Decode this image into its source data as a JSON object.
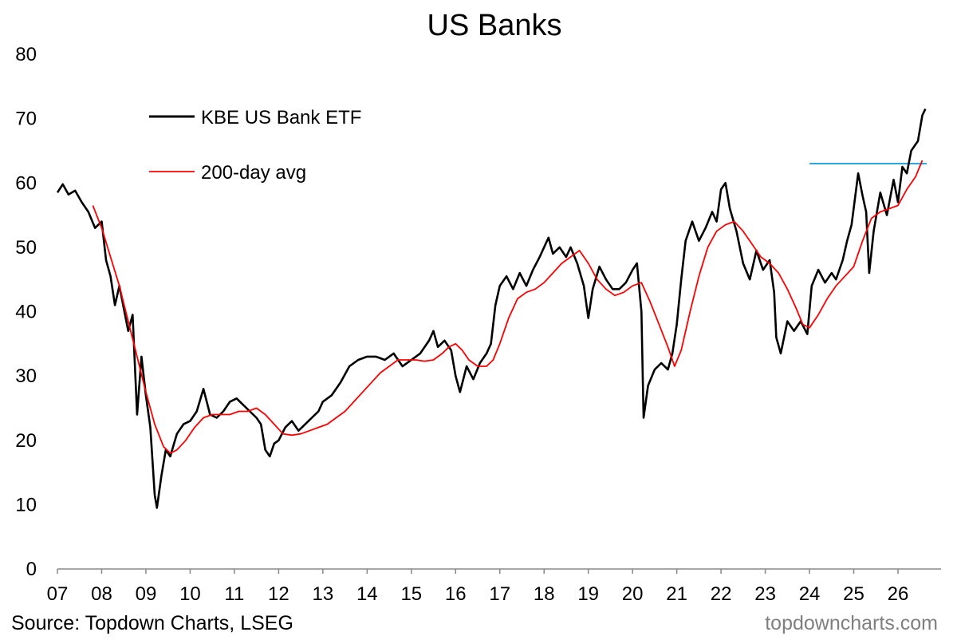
{
  "chart_data": {
    "type": "line",
    "title": "US Banks",
    "xlabel": "",
    "ylabel": "",
    "ylim": [
      0,
      80
    ],
    "y_ticks": [
      0,
      10,
      20,
      30,
      40,
      50,
      60,
      70,
      80
    ],
    "x_ticks": [
      "07",
      "08",
      "09",
      "10",
      "11",
      "12",
      "13",
      "14",
      "15",
      "16",
      "17",
      "18",
      "19",
      "20",
      "21",
      "22",
      "23",
      "24",
      "25",
      "26"
    ],
    "x_tick_years": [
      2007,
      2008,
      2009,
      2010,
      2011,
      2012,
      2013,
      2014,
      2015,
      2016,
      2017,
      2018,
      2019,
      2020,
      2021,
      2022,
      2023,
      2024,
      2025,
      2026
    ],
    "grid": false,
    "legend_position": "top-left",
    "series": [
      {
        "name": "KBE US Bank ETF",
        "color": "#000000",
        "x": [
          2007.0,
          2007.12,
          2007.25,
          2007.4,
          2007.55,
          2007.7,
          2007.85,
          2008.0,
          2008.1,
          2008.2,
          2008.3,
          2008.4,
          2008.5,
          2008.6,
          2008.7,
          2008.8,
          2008.9,
          2009.0,
          2009.1,
          2009.2,
          2009.25,
          2009.35,
          2009.45,
          2009.55,
          2009.7,
          2009.85,
          2010.0,
          2010.15,
          2010.3,
          2010.45,
          2010.6,
          2010.75,
          2010.9,
          2011.05,
          2011.2,
          2011.35,
          2011.5,
          2011.6,
          2011.7,
          2011.8,
          2011.9,
          2012.0,
          2012.15,
          2012.3,
          2012.45,
          2012.6,
          2012.75,
          2012.9,
          2013.0,
          2013.2,
          2013.4,
          2013.6,
          2013.8,
          2014.0,
          2014.2,
          2014.4,
          2014.6,
          2014.8,
          2015.0,
          2015.2,
          2015.4,
          2015.5,
          2015.6,
          2015.75,
          2015.9,
          2016.0,
          2016.1,
          2016.25,
          2016.4,
          2016.55,
          2016.7,
          2016.8,
          2016.9,
          2017.0,
          2017.15,
          2017.3,
          2017.45,
          2017.6,
          2017.75,
          2017.9,
          2018.0,
          2018.1,
          2018.2,
          2018.35,
          2018.5,
          2018.6,
          2018.75,
          2018.9,
          2019.0,
          2019.1,
          2019.25,
          2019.4,
          2019.55,
          2019.7,
          2019.85,
          2020.0,
          2020.1,
          2020.2,
          2020.25,
          2020.35,
          2020.5,
          2020.65,
          2020.8,
          2020.9,
          2021.0,
          2021.1,
          2021.2,
          2021.35,
          2021.5,
          2021.65,
          2021.8,
          2021.9,
          2022.0,
          2022.1,
          2022.2,
          2022.35,
          2022.5,
          2022.65,
          2022.8,
          2022.95,
          2023.1,
          2023.2,
          2023.25,
          2023.35,
          2023.5,
          2023.65,
          2023.8,
          2023.95,
          2024.05,
          2024.2,
          2024.35,
          2024.5,
          2024.6,
          2024.75,
          2024.85,
          2024.95,
          2025.1,
          2025.2,
          2025.28,
          2025.35,
          2025.45,
          2025.6,
          2025.75,
          2025.9,
          2026.0,
          2026.1,
          2026.2,
          2026.3,
          2026.45,
          2026.55,
          2026.62
        ],
        "values": [
          58.5,
          59.8,
          58.2,
          58.8,
          57.0,
          55.5,
          53.0,
          54.0,
          48.0,
          45.5,
          41.0,
          44.0,
          40.5,
          37.0,
          39.5,
          24.0,
          33.0,
          27.0,
          22.0,
          11.5,
          9.5,
          14.5,
          18.5,
          17.5,
          21.0,
          22.5,
          23.0,
          24.5,
          28.0,
          24.0,
          23.5,
          24.5,
          26.0,
          26.5,
          25.5,
          24.5,
          23.5,
          22.5,
          18.5,
          17.5,
          19.5,
          20.0,
          22.0,
          23.0,
          21.5,
          22.5,
          23.5,
          24.5,
          26.0,
          27.0,
          29.0,
          31.5,
          32.5,
          33.0,
          33.0,
          32.5,
          33.5,
          31.5,
          32.5,
          33.5,
          35.5,
          37.0,
          34.5,
          35.5,
          34.0,
          30.0,
          27.5,
          31.5,
          29.5,
          32.0,
          33.5,
          35.0,
          41.0,
          44.0,
          45.5,
          43.5,
          46.0,
          44.0,
          46.5,
          48.5,
          50.0,
          51.5,
          49.0,
          50.0,
          48.5,
          50.0,
          47.5,
          44.0,
          39.0,
          43.5,
          47.0,
          45.0,
          43.5,
          43.5,
          44.5,
          46.5,
          47.5,
          40.0,
          23.5,
          28.5,
          31.0,
          32.0,
          31.0,
          33.5,
          38.0,
          45.0,
          51.0,
          54.0,
          51.0,
          53.0,
          55.5,
          54.0,
          59.0,
          60.0,
          56.0,
          52.5,
          47.5,
          45.0,
          49.5,
          46.5,
          48.0,
          43.0,
          36.0,
          33.5,
          38.5,
          37.0,
          38.5,
          36.5,
          44.0,
          46.5,
          44.5,
          46.0,
          45.0,
          48.0,
          51.0,
          53.5,
          61.5,
          58.0,
          55.5,
          46.0,
          52.5,
          58.5,
          55.0,
          60.5,
          57.0,
          62.5,
          61.5,
          65.0,
          66.5,
          70.5,
          71.5
        ]
      },
      {
        "name": "200-day avg",
        "color": "#ff0000",
        "x": [
          2007.8,
          2008.0,
          2008.2,
          2008.4,
          2008.6,
          2008.8,
          2009.0,
          2009.2,
          2009.4,
          2009.55,
          2009.7,
          2009.9,
          2010.1,
          2010.3,
          2010.5,
          2010.7,
          2010.9,
          2011.1,
          2011.3,
          2011.5,
          2011.7,
          2011.9,
          2012.1,
          2012.3,
          2012.5,
          2012.7,
          2012.9,
          2013.1,
          2013.3,
          2013.5,
          2013.7,
          2013.9,
          2014.1,
          2014.3,
          2014.5,
          2014.7,
          2014.9,
          2015.1,
          2015.3,
          2015.5,
          2015.7,
          2015.85,
          2016.0,
          2016.15,
          2016.3,
          2016.5,
          2016.7,
          2016.85,
          2017.0,
          2017.2,
          2017.4,
          2017.6,
          2017.8,
          2018.0,
          2018.2,
          2018.4,
          2018.6,
          2018.8,
          2019.0,
          2019.2,
          2019.4,
          2019.6,
          2019.8,
          2020.0,
          2020.2,
          2020.4,
          2020.6,
          2020.8,
          2020.95,
          2021.1,
          2021.3,
          2021.5,
          2021.7,
          2021.9,
          2022.1,
          2022.3,
          2022.5,
          2022.7,
          2022.9,
          2023.1,
          2023.3,
          2023.5,
          2023.7,
          2023.85,
          2024.0,
          2024.2,
          2024.4,
          2024.6,
          2024.8,
          2025.0,
          2025.2,
          2025.4,
          2025.6,
          2025.8,
          2026.0,
          2026.2,
          2026.4,
          2026.55
        ],
        "values": [
          56.5,
          53.0,
          48.5,
          44.0,
          38.5,
          33.0,
          27.5,
          22.5,
          19.0,
          18.0,
          18.5,
          20.0,
          22.0,
          23.5,
          24.0,
          24.0,
          24.0,
          24.5,
          24.5,
          25.0,
          24.0,
          22.5,
          21.0,
          20.8,
          21.0,
          21.5,
          22.0,
          22.5,
          23.5,
          24.5,
          26.0,
          27.5,
          29.0,
          30.5,
          31.5,
          32.5,
          32.5,
          32.5,
          32.3,
          32.5,
          33.5,
          34.5,
          35.0,
          34.0,
          32.5,
          31.5,
          31.5,
          32.5,
          35.0,
          39.0,
          42.0,
          43.0,
          43.5,
          44.5,
          46.0,
          47.5,
          48.5,
          49.5,
          47.5,
          45.0,
          43.5,
          42.5,
          43.0,
          44.0,
          44.5,
          41.5,
          38.0,
          34.5,
          31.5,
          34.0,
          40.0,
          45.5,
          50.0,
          52.5,
          53.5,
          54.0,
          52.5,
          50.5,
          48.5,
          47.5,
          46.0,
          43.5,
          40.5,
          38.0,
          37.5,
          39.5,
          42.0,
          44.0,
          45.5,
          47.0,
          51.0,
          54.5,
          55.5,
          56.0,
          56.5,
          59.0,
          61.0,
          63.5
        ]
      }
    ],
    "reference_lines": [
      {
        "y": 63.0,
        "x_start": 2024.0,
        "x_end": 2026.65,
        "color": "#1f9fdf"
      }
    ]
  },
  "chart_title": "US Banks",
  "source_note": "Source: Topdown Charts, LSEG",
  "watermark": "topdowncharts.com"
}
